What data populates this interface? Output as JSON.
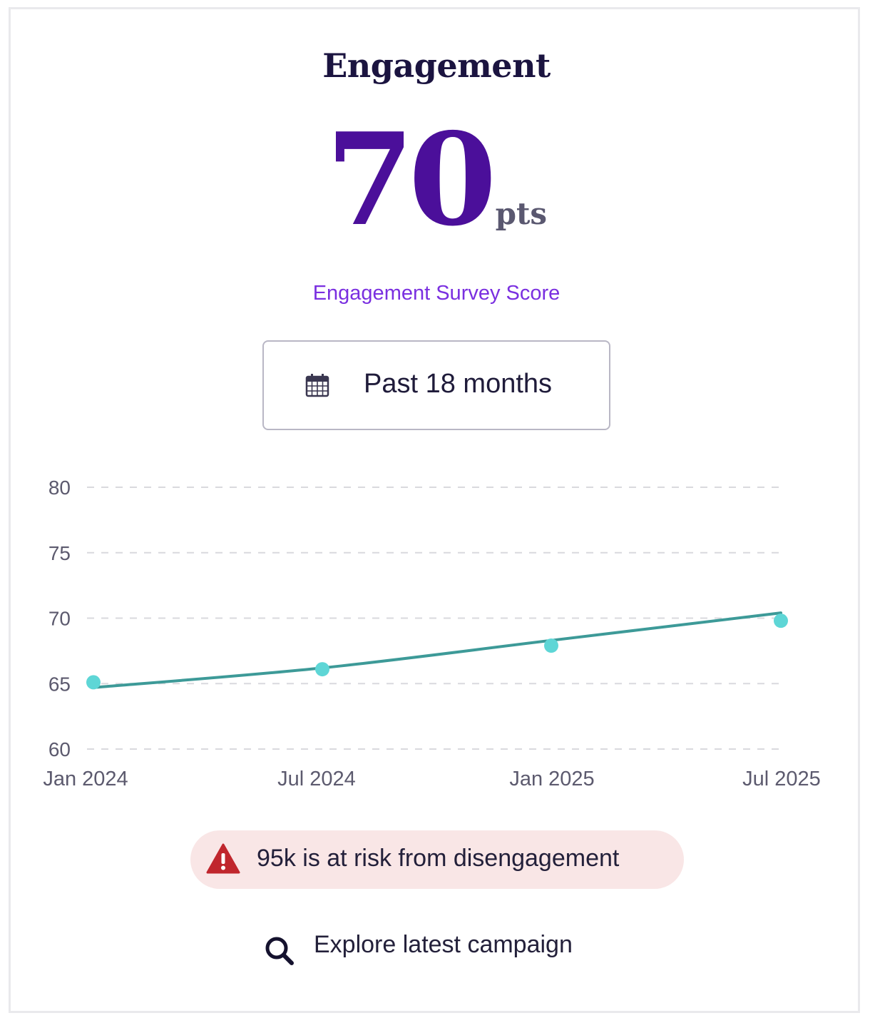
{
  "card": {
    "title": "Engagement",
    "score_value": "70",
    "score_unit": "pts",
    "subtitle": "Engagement Survey Score"
  },
  "range_button": {
    "icon": "calendar-icon",
    "label": "Past 18 months"
  },
  "chart_data": {
    "type": "line",
    "x": [
      "Jan 2024",
      "Jul 2024",
      "Jan 2025",
      "Jul 2025"
    ],
    "series": [
      {
        "values": [
          65.1,
          66.1,
          67.9,
          69.8
        ]
      }
    ],
    "trend": [
      64.7,
      66.2,
      68.3,
      70.4
    ],
    "ylim": [
      60,
      80
    ],
    "yticks": [
      80,
      75,
      70,
      65,
      60
    ],
    "grid": true,
    "colors": {
      "line": "#3d9a98",
      "point": "#5ed6d6",
      "grid": "#d9d9de",
      "tick": "#5c5a6e"
    }
  },
  "alert": {
    "icon": "warning-icon",
    "text": "95k is at risk from disengagement",
    "color": "#c0262d"
  },
  "explore": {
    "icon": "search-icon",
    "label": "Explore latest campaign"
  }
}
